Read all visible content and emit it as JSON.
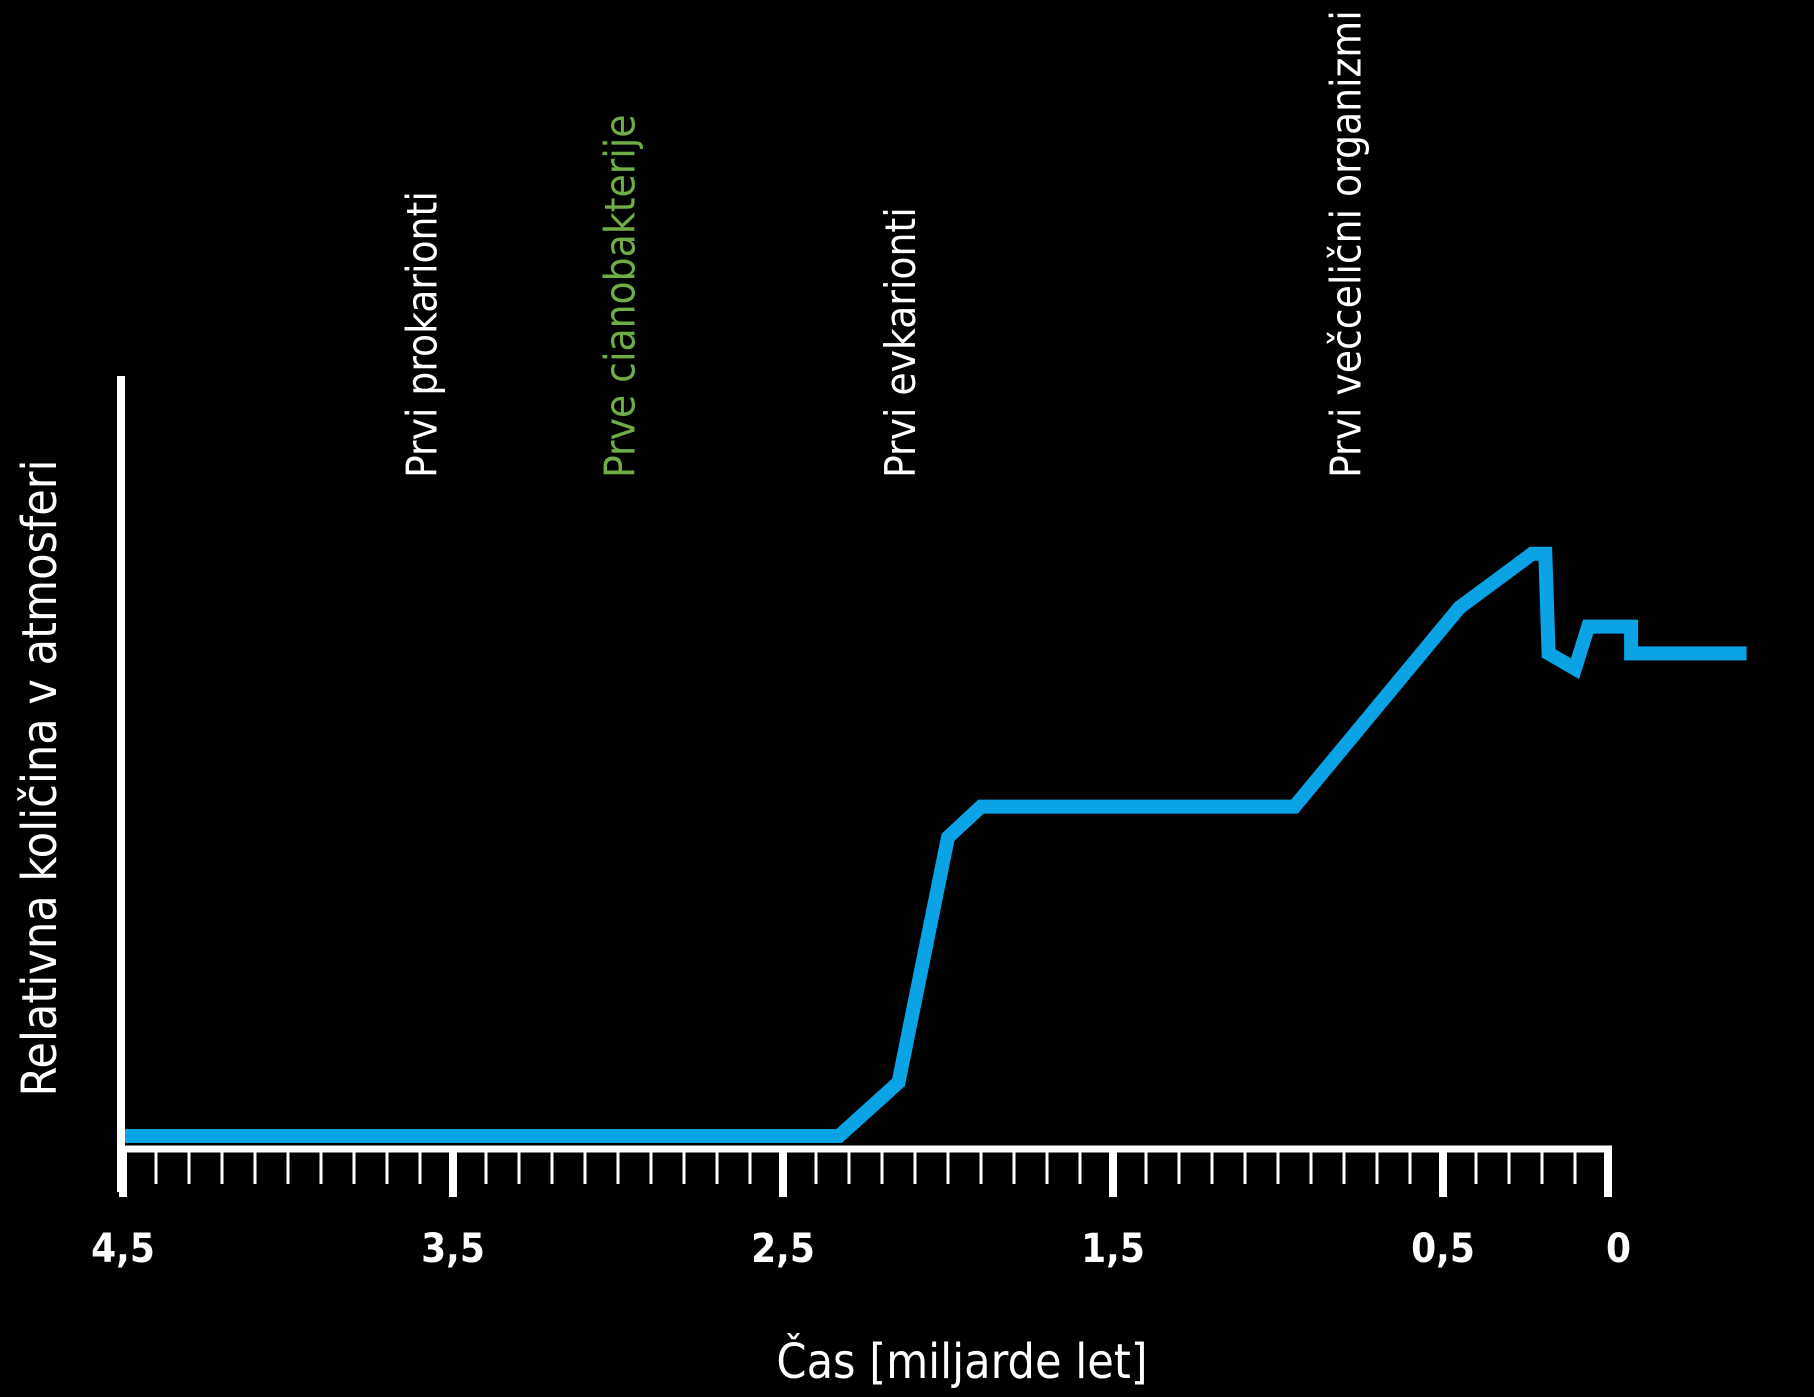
{
  "colors": {
    "background": "#000000",
    "axis": "#ffffff",
    "series_line": "#0aa3e6",
    "label_default": "#ffffff",
    "label_highlight": "#70ad47"
  },
  "chart_data": {
    "type": "line",
    "title": "",
    "xlabel": "Čas  [miljarde let]",
    "ylabel": "Relativna količina v atmosferi",
    "x_reversed": true,
    "xlim": [
      4.5,
      0
    ],
    "ylim": [
      0,
      1
    ],
    "grid": false,
    "y_ticks": false,
    "x_major_ticks": [
      {
        "value": 4.5,
        "label": "4,5"
      },
      {
        "value": 3.5,
        "label": "3,5"
      },
      {
        "value": 2.5,
        "label": "2,5"
      },
      {
        "value": 1.5,
        "label": "1,5"
      },
      {
        "value": 0.5,
        "label": "0,5"
      },
      {
        "value": 0,
        "label": "0"
      }
    ],
    "x_minor_step": 0.1,
    "series": [
      {
        "points": [
          {
            "x": 4.5,
            "y": 0.0
          },
          {
            "x": 2.33,
            "y": 0.0
          },
          {
            "x": 2.15,
            "y": 0.07
          },
          {
            "x": 2.0,
            "y": 0.39
          },
          {
            "x": 1.9,
            "y": 0.43
          },
          {
            "x": 0.95,
            "y": 0.43
          },
          {
            "x": 0.45,
            "y": 0.69
          },
          {
            "x": 0.23,
            "y": 0.76
          },
          {
            "x": 0.19,
            "y": 0.76
          },
          {
            "x": 0.18,
            "y": 0.63
          },
          {
            "x": 0.1,
            "y": 0.61
          },
          {
            "x": 0.06,
            "y": 0.665
          },
          {
            "x": -0.07,
            "y": 0.665
          },
          {
            "x": -0.07,
            "y": 0.63
          },
          {
            "x": -0.42,
            "y": 0.63
          }
        ]
      }
    ],
    "annotations": [
      {
        "x": 3.55,
        "text": "Prvi prokarionti",
        "color": "#ffffff"
      },
      {
        "x": 2.95,
        "text": "Prve cianobakterije",
        "color": "#70ad47"
      },
      {
        "x": 2.1,
        "text": "Prvi evkarionti",
        "color": "#ffffff"
      },
      {
        "x": 0.75,
        "text": "Prvi večcelični organizmi",
        "color": "#ffffff"
      }
    ]
  }
}
